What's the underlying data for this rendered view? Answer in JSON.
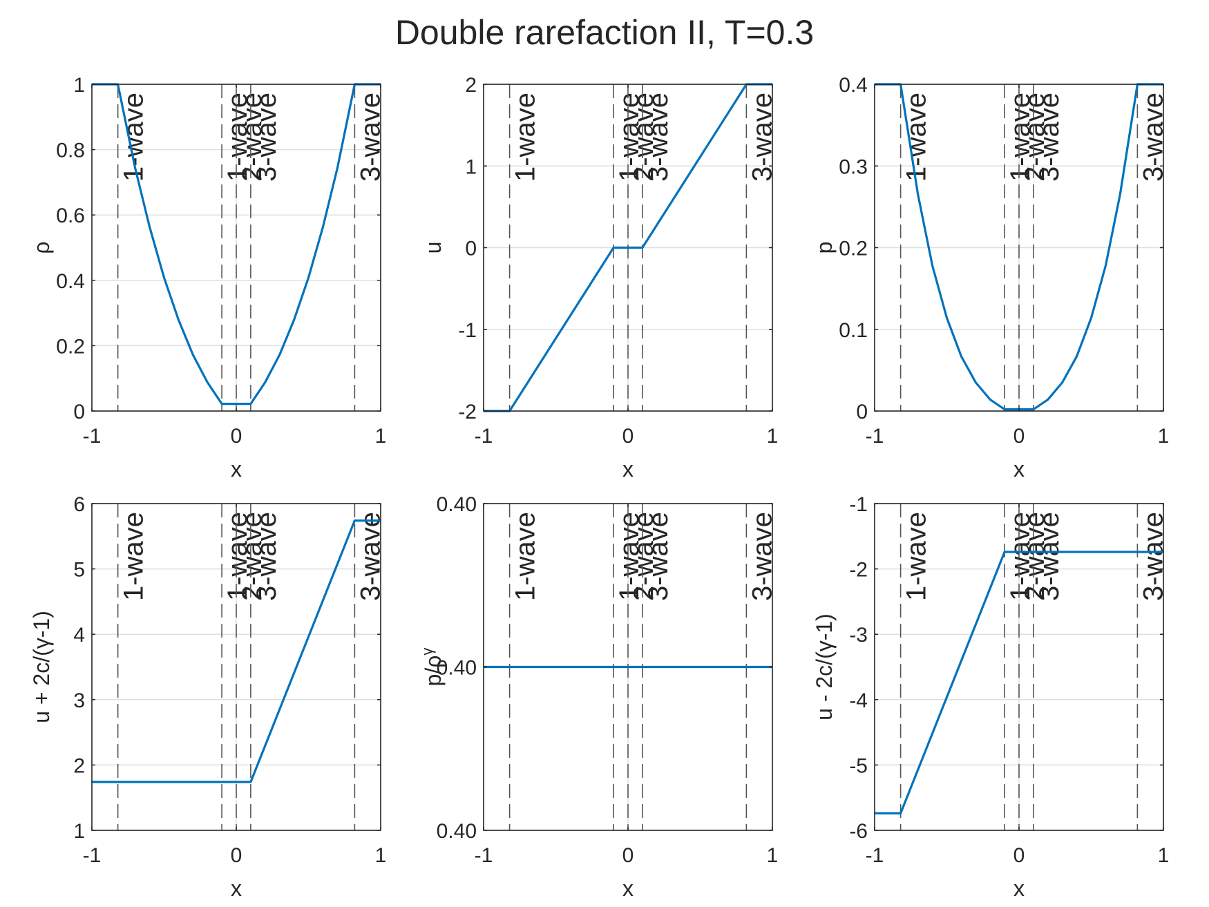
{
  "title": "Double rarefaction II, T=0.3",
  "colors": {
    "line": "#0072BD",
    "axes": "#262626",
    "grid": "#dfdfdf",
    "marker": "#555555"
  },
  "wave_markers": [
    {
      "x": -0.82,
      "label": "1-wave"
    },
    {
      "x": -0.1,
      "label": "1-wave"
    },
    {
      "x": 0.0,
      "label": "2-wave"
    },
    {
      "x": 0.1,
      "label": "3-wave"
    },
    {
      "x": 0.82,
      "label": "3-wave"
    }
  ],
  "chart_data": [
    {
      "type": "line",
      "ylabel": "ρ",
      "xlabel": "x",
      "xlim": [
        -1,
        1
      ],
      "ylim": [
        0,
        1
      ],
      "xticks": [
        "-1",
        "0",
        "1"
      ],
      "yticks": [
        {
          "v": 0,
          "t": "0"
        },
        {
          "v": 0.2,
          "t": "0.2"
        },
        {
          "v": 0.4,
          "t": "0.4"
        },
        {
          "v": 0.6,
          "t": "0.6"
        },
        {
          "v": 0.8,
          "t": "0.8"
        },
        {
          "v": 1,
          "t": "1"
        }
      ],
      "grid": true,
      "series": [
        {
          "points": [
            [
              -1,
              1
            ],
            [
              -0.82,
              1
            ],
            [
              -0.7,
              0.743
            ],
            [
              -0.6,
              0.563
            ],
            [
              -0.5,
              0.408
            ],
            [
              -0.4,
              0.279
            ],
            [
              -0.3,
              0.172
            ],
            [
              -0.2,
              0.088
            ],
            [
              -0.1,
              0.022
            ],
            [
              0,
              0.022
            ],
            [
              0.1,
              0.022
            ],
            [
              0.2,
              0.088
            ],
            [
              0.3,
              0.172
            ],
            [
              0.4,
              0.279
            ],
            [
              0.5,
              0.408
            ],
            [
              0.6,
              0.563
            ],
            [
              0.7,
              0.743
            ],
            [
              0.82,
              1
            ],
            [
              1,
              1
            ]
          ]
        }
      ]
    },
    {
      "type": "line",
      "ylabel": "u",
      "xlabel": "x",
      "xlim": [
        -1,
        1
      ],
      "ylim": [
        -2,
        2
      ],
      "xticks": [
        "-1",
        "0",
        "1"
      ],
      "yticks": [
        {
          "v": -2,
          "t": "-2"
        },
        {
          "v": -1,
          "t": "-1"
        },
        {
          "v": 0,
          "t": "0"
        },
        {
          "v": 1,
          "t": "1"
        },
        {
          "v": 2,
          "t": "2"
        }
      ],
      "grid": true,
      "series": [
        {
          "points": [
            [
              -1,
              -2
            ],
            [
              -0.82,
              -2
            ],
            [
              -0.1,
              0
            ],
            [
              0.1,
              0
            ],
            [
              0.82,
              2
            ],
            [
              1,
              2
            ]
          ]
        }
      ]
    },
    {
      "type": "line",
      "ylabel": "p",
      "xlabel": "x",
      "xlim": [
        -1,
        1
      ],
      "ylim": [
        0,
        0.4
      ],
      "xticks": [
        "-1",
        "0",
        "1"
      ],
      "yticks": [
        {
          "v": 0,
          "t": "0"
        },
        {
          "v": 0.1,
          "t": "0.1"
        },
        {
          "v": 0.2,
          "t": "0.2"
        },
        {
          "v": 0.3,
          "t": "0.3"
        },
        {
          "v": 0.4,
          "t": "0.4"
        }
      ],
      "grid": true,
      "series": [
        {
          "points": [
            [
              -1,
              0.4
            ],
            [
              -0.82,
              0.4
            ],
            [
              -0.7,
              0.265
            ],
            [
              -0.6,
              0.178
            ],
            [
              -0.5,
              0.114
            ],
            [
              -0.4,
              0.067
            ],
            [
              -0.3,
              0.035
            ],
            [
              -0.2,
              0.014
            ],
            [
              -0.1,
              0.002
            ],
            [
              0,
              0.002
            ],
            [
              0.1,
              0.002
            ],
            [
              0.2,
              0.014
            ],
            [
              0.3,
              0.035
            ],
            [
              0.4,
              0.067
            ],
            [
              0.5,
              0.114
            ],
            [
              0.6,
              0.178
            ],
            [
              0.7,
              0.265
            ],
            [
              0.82,
              0.4
            ],
            [
              1,
              0.4
            ]
          ]
        }
      ]
    },
    {
      "type": "line",
      "ylabel": "u + 2c/(γ-1)",
      "xlabel": "x",
      "xlim": [
        -1,
        1
      ],
      "ylim": [
        1,
        6
      ],
      "xticks": [
        "-1",
        "0",
        "1"
      ],
      "yticks": [
        {
          "v": 1,
          "t": "1"
        },
        {
          "v": 2,
          "t": "2"
        },
        {
          "v": 3,
          "t": "3"
        },
        {
          "v": 4,
          "t": "4"
        },
        {
          "v": 5,
          "t": "5"
        },
        {
          "v": 6,
          "t": "6"
        }
      ],
      "grid": true,
      "series": [
        {
          "points": [
            [
              -1,
              1.74
            ],
            [
              0.1,
              1.74
            ],
            [
              0.82,
              5.74
            ],
            [
              1,
              5.74
            ]
          ]
        }
      ]
    },
    {
      "type": "line",
      "ylabel": "p/ρ",
      "ylabel_sup": "γ",
      "xlabel": "x",
      "xlim": [
        -1,
        1
      ],
      "ylim": [
        0,
        1
      ],
      "xticks": [
        "-1",
        "0",
        "1"
      ],
      "yticks": [
        {
          "v": 0,
          "t": "0.40"
        },
        {
          "v": 0.5,
          "t": "0.40"
        },
        {
          "v": 1,
          "t": "0.40"
        }
      ],
      "grid": true,
      "series": [
        {
          "points": [
            [
              -1,
              0.5
            ],
            [
              1,
              0.5
            ]
          ]
        }
      ]
    },
    {
      "type": "line",
      "ylabel": "u - 2c/(γ-1)",
      "xlabel": "x",
      "xlim": [
        -1,
        1
      ],
      "ylim": [
        -6,
        -1
      ],
      "xticks": [
        "-1",
        "0",
        "1"
      ],
      "yticks": [
        {
          "v": -6,
          "t": "-6"
        },
        {
          "v": -5,
          "t": "-5"
        },
        {
          "v": -4,
          "t": "-4"
        },
        {
          "v": -3,
          "t": "-3"
        },
        {
          "v": -2,
          "t": "-2"
        },
        {
          "v": -1,
          "t": "-1"
        }
      ],
      "grid": true,
      "series": [
        {
          "points": [
            [
              -1,
              -5.74
            ],
            [
              -0.82,
              -5.74
            ],
            [
              -0.1,
              -1.74
            ],
            [
              1,
              -1.74
            ]
          ]
        }
      ]
    }
  ]
}
